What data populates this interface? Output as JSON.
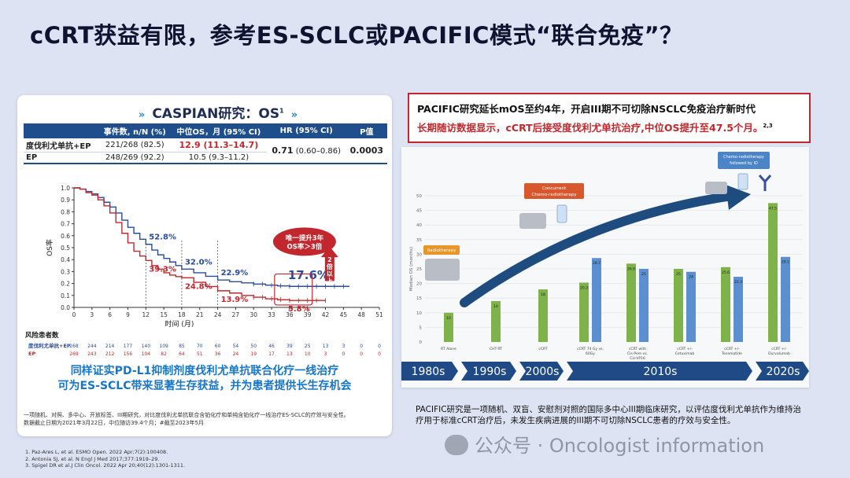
{
  "title": "cCRT获益有限，参考ES-SCLC或PACIFIC模式“联合免疫”？",
  "caspian": {
    "title": "CASPIAN研究：OS",
    "title_sup": "1",
    "table": {
      "headers": [
        "",
        "事件数, n/N (%)",
        "中位OS，月 (95% CI)",
        "HR (95% CI)",
        "P值"
      ],
      "rows": [
        {
          "arm": "度伐利尤单抗+EP",
          "events": "221/268 (82.5)",
          "median": "12.9 (11.3–14.7)"
        },
        {
          "arm": "EP",
          "events": "248/269 (92.2)",
          "median": "10.5 (9.3–11.2)"
        }
      ],
      "hr": "0.71",
      "hr_ci": "(0.60–0.86)",
      "p": "0.0003"
    },
    "bubble_text": "唯一提升3年 OS率＞3倍",
    "arrow_text": "2倍以上",
    "risk_title": "风险患者数",
    "bottom_text_line1": "同样证实PD-L1抑制剂度伐利尤单抗联合化疗一线治疗",
    "bottom_text_line2": "可为ES-SCLC带来显著生存获益，并为患者提供长生存机会",
    "methods_line1": "一项随机、对照、多中心、开放标签、III期研究，对比度伐利尤单抗联合含铂化疗和单纯含铂化疗一线治疗ES-SCLC的疗效与安全性。",
    "methods_line2": "数据截止日期为2021年3月22日，中位随访39.4个月；#截至2023年5月"
  },
  "references": [
    "1.   Paz-Ares L, et al. ESMO Open. 2022 Apr;7(2):100408.",
    "2.   Antonia SJ, et al. N Engl J Med 2017;377:1919–29.",
    "3.   Spigel DR et al.J Clin Oncol. 2022 Apr 20;40(12):1301-1311."
  ],
  "pacific_box": {
    "line1": "PACIFIC研究延长mOS至约4年，开启III期不可切除NSCLC免疫治疗新时代",
    "line2": "长期随访数据显示，cCRT后接受度伐利尤单抗治疗,中位OS提升至47.5个月。",
    "line2_sup": "2,3"
  },
  "pacific_description": "PACIFIC研究是一项随机、双盲、安慰剂对照的国际多中心III期临床研究，以评估度伐利尤单抗作为维持治疗用于标准cCRT治疗后，未发生疾病进展的III期不可切除NSCLC患者的疗效与安全性。",
  "watermark": "公众号 · Oncologist information",
  "colors": {
    "durva": "#2a4c9e",
    "ep": "#c1272d",
    "bar_green": "#7fb34a",
    "bar_blue": "#5b8fcf",
    "accent_blue": "#1677c8"
  },
  "chart_data": [
    {
      "type": "line",
      "title": "CASPIAN研究：OS",
      "xlabel": "时间 (月)",
      "ylabel": "OS率",
      "xlim": [
        0,
        51
      ],
      "ylim": [
        0,
        1.0
      ],
      "xticks": [
        0,
        3,
        6,
        9,
        12,
        15,
        18,
        21,
        24,
        27,
        30,
        33,
        36,
        39,
        42,
        45,
        48,
        51
      ],
      "yticks": [
        0,
        0.1,
        0.2,
        0.3,
        0.4,
        0.5,
        0.6,
        0.7,
        0.8,
        0.9,
        1.0
      ],
      "series": [
        {
          "name": "度伐利尤单抗+EP",
          "x": [
            0,
            1,
            2,
            3,
            4,
            5,
            6,
            7,
            8,
            9,
            10,
            11,
            12,
            13,
            14,
            15,
            16,
            17,
            18,
            20,
            22,
            24,
            26,
            28,
            30,
            32,
            34,
            36,
            38,
            40,
            42,
            44,
            46
          ],
          "y": [
            1.0,
            0.99,
            0.97,
            0.95,
            0.92,
            0.88,
            0.84,
            0.79,
            0.73,
            0.67,
            0.62,
            0.57,
            0.528,
            0.48,
            0.44,
            0.41,
            0.38,
            0.35,
            0.32,
            0.29,
            0.26,
            0.229,
            0.215,
            0.205,
            0.195,
            0.186,
            0.18,
            0.176,
            0.176,
            0.176,
            0.176,
            0.176,
            0.176
          ]
        },
        {
          "name": "EP",
          "x": [
            0,
            1,
            2,
            3,
            4,
            5,
            6,
            7,
            8,
            9,
            10,
            11,
            12,
            13,
            14,
            15,
            16,
            17,
            18,
            20,
            22,
            24,
            26,
            28,
            30,
            32,
            34,
            36,
            38,
            40,
            42
          ],
          "y": [
            1.0,
            0.99,
            0.96,
            0.94,
            0.9,
            0.85,
            0.79,
            0.71,
            0.62,
            0.54,
            0.47,
            0.43,
            0.393,
            0.35,
            0.32,
            0.29,
            0.27,
            0.258,
            0.248,
            0.21,
            0.175,
            0.139,
            0.12,
            0.1,
            0.085,
            0.072,
            0.064,
            0.058,
            0.058,
            0.058,
            0.058
          ]
        }
      ],
      "annotations": [
        {
          "text": "52.8%",
          "x": 12,
          "series": "度伐利尤单抗+EP"
        },
        {
          "text": "39.3%",
          "x": 12,
          "series": "EP"
        },
        {
          "text": "32.0%",
          "x": 18,
          "series": "度伐利尤单抗+EP"
        },
        {
          "text": "24.8%",
          "x": 18,
          "series": "EP"
        },
        {
          "text": "22.9%",
          "x": 24,
          "series": "度伐利尤单抗+EP"
        },
        {
          "text": "13.9%",
          "x": 24,
          "series": "EP"
        },
        {
          "text": "17.6%",
          "x": 36,
          "series": "度伐利尤单抗+EP"
        },
        {
          "text": "5.8%",
          "x": 36,
          "series": "EP"
        }
      ],
      "risk_table": {
        "times": [
          0,
          3,
          6,
          9,
          12,
          15,
          18,
          21,
          24,
          27,
          30,
          33,
          36,
          39,
          42,
          45,
          48,
          51
        ],
        "rows": [
          {
            "label": "度伐利尤单抗+EP",
            "values": [
              268,
              244,
              214,
              177,
              140,
              109,
              85,
              70,
              60,
              54,
              50,
              46,
              39,
              25,
              13,
              3,
              0,
              0
            ]
          },
          {
            "label": "EP",
            "values": [
              269,
              243,
              212,
              156,
              104,
              82,
              64,
              51,
              36,
              24,
              19,
              17,
              13,
              10,
              3,
              0,
              0,
              0
            ]
          }
        ]
      }
    },
    {
      "type": "bar",
      "ylabel": "Median OS (months)",
      "ylim": [
        0,
        50
      ],
      "yticks": [
        0,
        5,
        10,
        15,
        20,
        25,
        30,
        35,
        40,
        45,
        50
      ],
      "groups": [
        {
          "label": "RT Alone",
          "values": [
            10
          ]
        },
        {
          "label": "CHT-RT",
          "values": [
            14
          ]
        },
        {
          "label": "cCRT",
          "values": [
            18
          ]
        },
        {
          "label": "cCRT 74 Gy vs. 60Gy",
          "values": [
            20.3,
            28.7
          ]
        },
        {
          "label": "cCRT with Cis-Pem vs. Cis-VP16",
          "values": [
            26.8,
            25.0
          ]
        },
        {
          "label": "cCRT +/- Cetuximab",
          "values": [
            25.0,
            24.0
          ]
        },
        {
          "label": "cCRT +/- Tecemotide",
          "values": [
            25.6,
            22.3
          ]
        },
        {
          "label": "cCRT +/- Durvalumab",
          "values": [
            47.5,
            29.1
          ]
        }
      ],
      "bar_labels": [
        "10",
        "14",
        "18",
        "20.3",
        "28.7",
        "26.8",
        "25",
        "25",
        "24",
        "25.6",
        "22.3",
        "47.5",
        "29.1"
      ],
      "timeline": [
        "1980s",
        "1990s",
        "2000s",
        "2010s",
        "2020s"
      ],
      "stage_labels": [
        "Radiotherapy",
        "Concurrent Chemo-radiotherapy",
        "Chemo-radiotherapy followed by IO"
      ]
    }
  ]
}
